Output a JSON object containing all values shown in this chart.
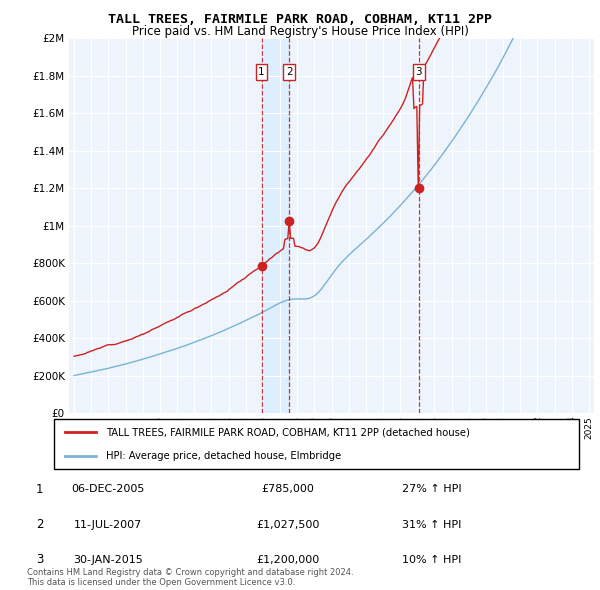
{
  "title": "TALL TREES, FAIRMILE PARK ROAD, COBHAM, KT11 2PP",
  "subtitle": "Price paid vs. HM Land Registry's House Price Index (HPI)",
  "ylim": [
    0,
    2000000
  ],
  "yticks": [
    0,
    200000,
    400000,
    600000,
    800000,
    1000000,
    1200000,
    1400000,
    1600000,
    1800000,
    2000000
  ],
  "hpi_color": "#7ab3d4",
  "price_color": "#cc2222",
  "sale1_date": 2005.92,
  "sale1_price": 785000,
  "sale2_date": 2007.53,
  "sale2_price": 1027500,
  "sale3_date": 2015.08,
  "sale3_price": 1200000,
  "vline_color": "#cc2222",
  "highlight_color": "#ddeeff",
  "legend_text1": "TALL TREES, FAIRMILE PARK ROAD, COBHAM, KT11 2PP (detached house)",
  "legend_text2": "HPI: Average price, detached house, Elmbridge",
  "table_rows": [
    [
      "1",
      "06-DEC-2005",
      "£785,000",
      "27% ↑ HPI"
    ],
    [
      "2",
      "11-JUL-2007",
      "£1,027,500",
      "31% ↑ HPI"
    ],
    [
      "3",
      "30-JAN-2015",
      "£1,200,000",
      "10% ↑ HPI"
    ]
  ],
  "footnote": "Contains HM Land Registry data © Crown copyright and database right 2024.\nThis data is licensed under the Open Government Licence v3.0.",
  "background_color": "#ffffff",
  "grid_color": "#cccccc",
  "chart_bg": "#eef4fb"
}
